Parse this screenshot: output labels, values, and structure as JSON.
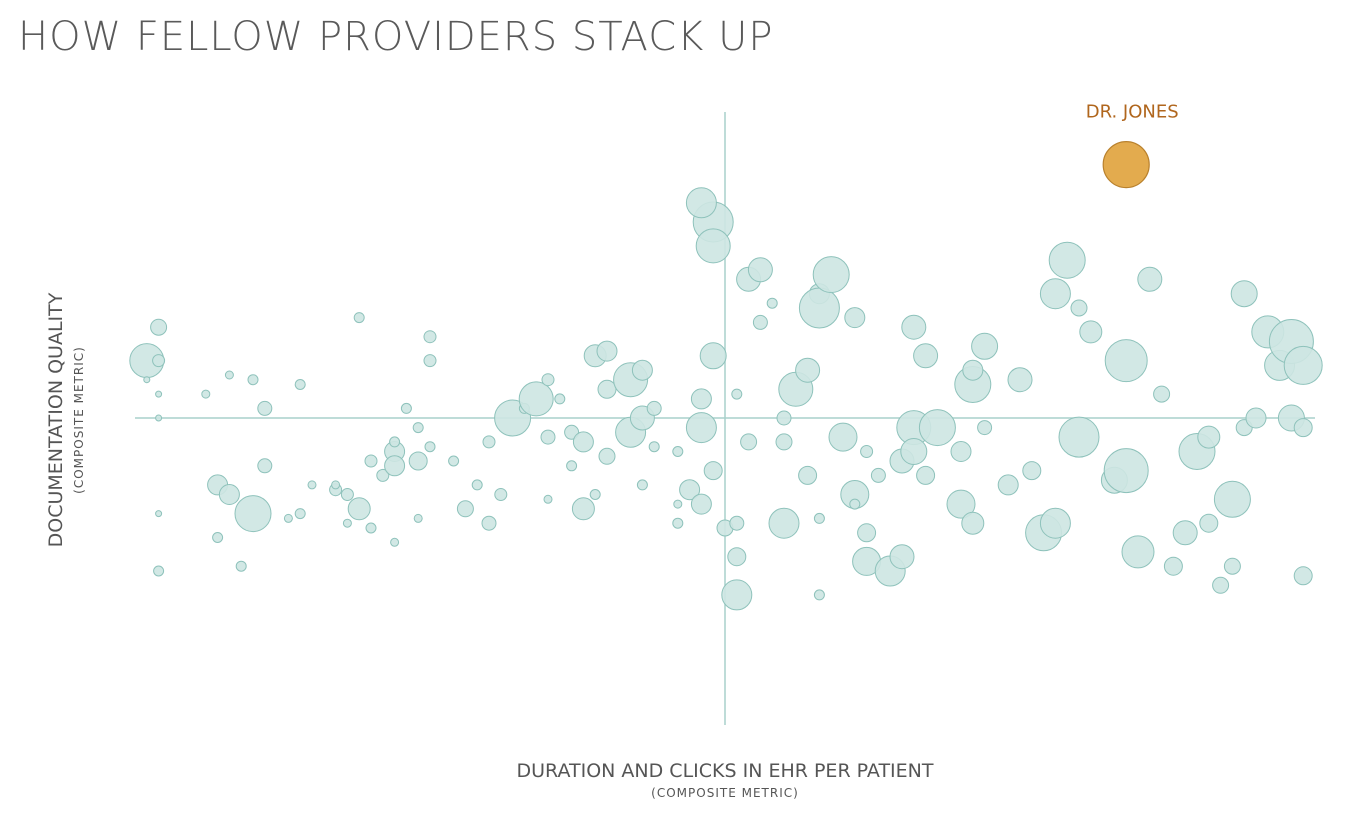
{
  "title": "HOW FELLOW PROVIDERS STACK UP",
  "colors": {
    "bubble_fill": "#cde6e2",
    "bubble_stroke": "#8ec2bb",
    "highlight_fill": "#e3ab4e",
    "highlight_stroke": "#b9812d",
    "highlight_label": "#b0661d",
    "axis": "#a9d0cb"
  },
  "chart_data": {
    "type": "scatter",
    "title": "HOW FELLOW PROVIDERS STACK UP",
    "xlabel": "DURATION AND CLICKS IN EHR PER PATIENT",
    "xlabel_sub": "(COMPOSITE METRIC)",
    "ylabel": "DOCUMENTATION QUALITY",
    "ylabel_sub": "(COMPOSITE METRIC)",
    "xlim": [
      -5,
      5
    ],
    "ylim": [
      -5,
      5
    ],
    "grid": false,
    "highlight": {
      "label": "DR. JONES",
      "x": 3.4,
      "y": 5.3,
      "r": 23
    },
    "points": [
      [
        -4.9,
        1.2,
        17
      ],
      [
        -4.8,
        1.9,
        8
      ],
      [
        -4.8,
        1.2,
        6
      ],
      [
        -4.9,
        0.8,
        3
      ],
      [
        -4.8,
        0.5,
        3
      ],
      [
        -4.8,
        0.0,
        3
      ],
      [
        -4.8,
        -2.0,
        3
      ],
      [
        -4.8,
        -3.2,
        5
      ],
      [
        -4.4,
        0.5,
        4
      ],
      [
        -4.1,
        -3.1,
        5
      ],
      [
        -4.3,
        -1.4,
        10
      ],
      [
        -4.3,
        -2.5,
        5
      ],
      [
        -4.2,
        0.9,
        4
      ],
      [
        -4.2,
        -1.6,
        10
      ],
      [
        -4.0,
        -2.0,
        18
      ],
      [
        -4.0,
        0.8,
        5
      ],
      [
        -3.9,
        0.2,
        7
      ],
      [
        -3.9,
        -1.0,
        7
      ],
      [
        -3.7,
        -2.1,
        4
      ],
      [
        -3.6,
        -2.0,
        5
      ],
      [
        -3.6,
        0.7,
        5
      ],
      [
        -3.5,
        -1.4,
        4
      ],
      [
        -3.3,
        -1.5,
        6
      ],
      [
        -3.2,
        -2.2,
        4
      ],
      [
        -3.3,
        -1.4,
        4
      ],
      [
        -3.2,
        -1.6,
        6
      ],
      [
        -3.1,
        -1.9,
        11
      ],
      [
        -3.1,
        2.1,
        5
      ],
      [
        -3.0,
        -0.9,
        6
      ],
      [
        -3.0,
        -2.3,
        5
      ],
      [
        -2.9,
        -1.2,
        6
      ],
      [
        -2.8,
        -0.7,
        10
      ],
      [
        -2.8,
        -1.0,
        10
      ],
      [
        -2.8,
        -0.5,
        5
      ],
      [
        -2.6,
        -2.1,
        4
      ],
      [
        -2.7,
        0.2,
        5
      ],
      [
        -2.8,
        -2.6,
        4
      ],
      [
        -2.6,
        -0.2,
        5
      ],
      [
        -2.5,
        1.7,
        6
      ],
      [
        -2.5,
        1.2,
        6
      ],
      [
        -2.6,
        -0.9,
        9
      ],
      [
        -2.5,
        -0.6,
        5
      ],
      [
        -2.2,
        -1.9,
        8
      ],
      [
        -2.3,
        -0.9,
        5
      ],
      [
        -2.1,
        -1.4,
        5
      ],
      [
        -2.0,
        -0.5,
        6
      ],
      [
        -2.0,
        -2.2,
        7
      ],
      [
        -1.9,
        -1.6,
        6
      ],
      [
        -1.8,
        0.0,
        18
      ],
      [
        -1.7,
        0.2,
        5
      ],
      [
        -1.6,
        0.4,
        17
      ],
      [
        -1.5,
        -1.7,
        4
      ],
      [
        -1.5,
        0.8,
        6
      ],
      [
        -1.5,
        -0.4,
        7
      ],
      [
        -1.4,
        0.4,
        5
      ],
      [
        -1.3,
        -0.3,
        7
      ],
      [
        -1.2,
        -0.5,
        10
      ],
      [
        -1.2,
        -1.9,
        11
      ],
      [
        -1.3,
        -1.0,
        5
      ],
      [
        -1.1,
        -1.6,
        5
      ],
      [
        -1.1,
        1.3,
        11
      ],
      [
        -1.0,
        1.4,
        10
      ],
      [
        -1.0,
        0.6,
        9
      ],
      [
        -1.0,
        -0.8,
        8
      ],
      [
        -0.8,
        -0.3,
        15
      ],
      [
        -0.8,
        0.8,
        17
      ],
      [
        -0.7,
        -1.4,
        5
      ],
      [
        -0.7,
        0.0,
        12
      ],
      [
        -0.7,
        1.0,
        10
      ],
      [
        -0.6,
        -0.6,
        5
      ],
      [
        -0.6,
        0.2,
        7
      ],
      [
        -0.4,
        -2.2,
        5
      ],
      [
        -0.4,
        -1.8,
        4
      ],
      [
        -0.4,
        -0.7,
        5
      ],
      [
        -0.3,
        -1.5,
        10
      ],
      [
        -0.2,
        -0.2,
        15
      ],
      [
        -0.2,
        -1.8,
        10
      ],
      [
        -0.1,
        -1.1,
        9
      ],
      [
        -0.1,
        4.1,
        20
      ],
      [
        -0.2,
        4.5,
        15
      ],
      [
        -0.2,
        0.4,
        10
      ],
      [
        -0.1,
        1.3,
        13
      ],
      [
        -0.1,
        3.6,
        17
      ],
      [
        0.1,
        0.5,
        5
      ],
      [
        0.0,
        -2.3,
        8
      ],
      [
        0.1,
        -2.9,
        9
      ],
      [
        0.1,
        -3.7,
        15
      ],
      [
        0.2,
        -0.5,
        8
      ],
      [
        0.1,
        -2.2,
        7
      ],
      [
        0.2,
        2.9,
        12
      ],
      [
        0.3,
        3.1,
        12
      ],
      [
        0.3,
        2.0,
        7
      ],
      [
        0.4,
        2.4,
        5
      ],
      [
        0.5,
        0.0,
        7
      ],
      [
        0.5,
        -2.2,
        15
      ],
      [
        0.5,
        -0.5,
        8
      ],
      [
        0.6,
        0.6,
        17
      ],
      [
        0.7,
        1.0,
        12
      ],
      [
        0.7,
        -1.2,
        9
      ],
      [
        0.8,
        -2.1,
        5
      ],
      [
        0.8,
        -3.7,
        5
      ],
      [
        0.8,
        2.6,
        10
      ],
      [
        0.8,
        2.3,
        20
      ],
      [
        0.9,
        3.0,
        18
      ],
      [
        1.0,
        -0.4,
        14
      ],
      [
        1.1,
        -1.6,
        14
      ],
      [
        1.1,
        2.1,
        10
      ],
      [
        1.1,
        -1.8,
        5
      ],
      [
        1.2,
        -2.4,
        9
      ],
      [
        1.2,
        -3.0,
        14
      ],
      [
        1.2,
        -0.7,
        6
      ],
      [
        1.3,
        -1.2,
        7
      ],
      [
        1.4,
        -3.2,
        15
      ],
      [
        1.5,
        -2.9,
        12
      ],
      [
        1.5,
        -0.9,
        12
      ],
      [
        1.6,
        1.9,
        12
      ],
      [
        1.6,
        -0.2,
        17
      ],
      [
        1.6,
        -0.7,
        13
      ],
      [
        1.7,
        -1.2,
        9
      ],
      [
        1.7,
        1.3,
        12
      ],
      [
        1.8,
        -0.2,
        18
      ],
      [
        2.0,
        -0.7,
        10
      ],
      [
        2.0,
        -1.8,
        14
      ],
      [
        2.1,
        -2.2,
        11
      ],
      [
        2.1,
        0.7,
        18
      ],
      [
        2.1,
        1.0,
        10
      ],
      [
        2.2,
        1.5,
        13
      ],
      [
        2.2,
        -0.2,
        7
      ],
      [
        2.4,
        -1.4,
        10
      ],
      [
        2.5,
        0.8,
        12
      ],
      [
        2.6,
        -1.1,
        9
      ],
      [
        2.7,
        -2.4,
        18
      ],
      [
        2.8,
        -2.2,
        15
      ],
      [
        2.8,
        2.6,
        15
      ],
      [
        2.9,
        3.3,
        18
      ],
      [
        3.0,
        -0.4,
        20
      ],
      [
        3.0,
        2.3,
        8
      ],
      [
        3.1,
        1.8,
        11
      ],
      [
        3.3,
        -1.3,
        13
      ],
      [
        3.4,
        -1.1,
        22
      ],
      [
        3.4,
        1.2,
        21
      ],
      [
        3.5,
        -2.8,
        16
      ],
      [
        3.6,
        2.9,
        12
      ],
      [
        3.7,
        0.5,
        8
      ],
      [
        3.8,
        -3.1,
        9
      ],
      [
        3.9,
        -2.4,
        12
      ],
      [
        4.0,
        -0.7,
        18
      ],
      [
        4.1,
        -0.4,
        11
      ],
      [
        4.1,
        -2.2,
        9
      ],
      [
        4.2,
        -3.5,
        8
      ],
      [
        4.3,
        -1.7,
        18
      ],
      [
        4.3,
        -3.1,
        8
      ],
      [
        4.4,
        2.6,
        13
      ],
      [
        4.4,
        -0.2,
        8
      ],
      [
        4.5,
        0.0,
        10
      ],
      [
        4.6,
        1.8,
        16
      ],
      [
        4.7,
        1.1,
        15
      ],
      [
        4.8,
        0.0,
        13
      ],
      [
        4.8,
        1.6,
        22
      ],
      [
        4.9,
        -0.2,
        9
      ],
      [
        4.9,
        1.1,
        19
      ],
      [
        4.9,
        -3.3,
        9
      ]
    ]
  }
}
